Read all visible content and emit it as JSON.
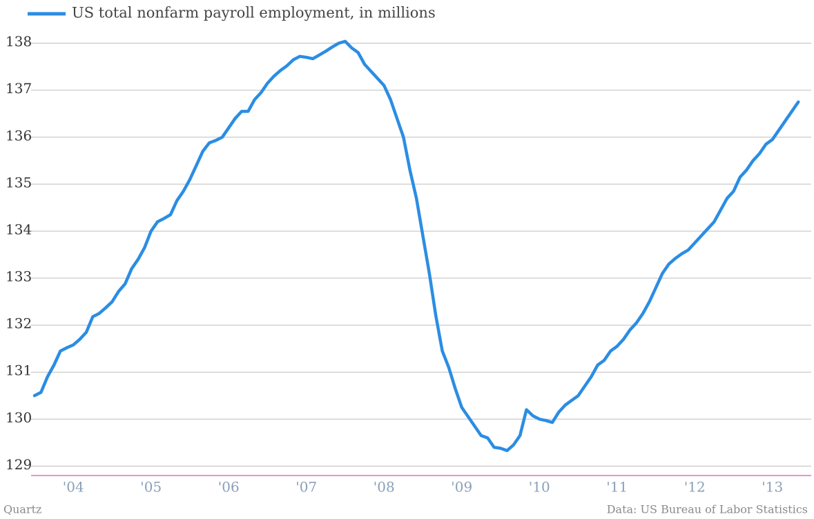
{
  "chart_data": {
    "type": "line",
    "credit": "Quartz",
    "source": "Data: US Bureau of Labor Statistics",
    "categories": [
      null,
      null,
      null,
      null,
      null,
      null,
      "'04",
      null,
      null,
      null,
      null,
      null,
      null,
      null,
      null,
      null,
      null,
      null,
      "'05",
      null,
      null,
      null,
      null,
      null,
      null,
      null,
      null,
      null,
      null,
      null,
      "'06",
      null,
      null,
      null,
      null,
      null,
      null,
      null,
      null,
      null,
      null,
      null,
      "'07",
      null,
      null,
      null,
      null,
      null,
      null,
      null,
      null,
      null,
      null,
      null,
      "'08",
      null,
      null,
      null,
      null,
      null,
      null,
      null,
      null,
      null,
      null,
      null,
      "'09",
      null,
      null,
      null,
      null,
      null,
      null,
      null,
      null,
      null,
      null,
      null,
      "'10",
      null,
      null,
      null,
      null,
      null,
      null,
      null,
      null,
      null,
      null,
      null,
      "'11",
      null,
      null,
      null,
      null,
      null,
      null,
      null,
      null,
      null,
      null,
      null,
      "'12",
      null,
      null,
      null,
      null,
      null,
      null,
      null,
      null,
      null,
      null,
      null,
      "'13",
      null,
      null,
      null,
      null
    ],
    "series": [
      {
        "name": "US total nonfarm payroll employment, in millions",
        "color": "#2b8de3",
        "values": [
          130.5,
          130.57,
          130.9,
          131.15,
          131.45,
          131.52,
          131.58,
          131.7,
          131.85,
          132.18,
          132.25,
          132.37,
          132.5,
          132.72,
          132.88,
          133.2,
          133.4,
          133.65,
          134.0,
          134.2,
          134.27,
          134.35,
          134.65,
          134.85,
          135.1,
          135.4,
          135.7,
          135.88,
          135.93,
          136.0,
          136.2,
          136.4,
          136.55,
          136.55,
          136.8,
          136.95,
          137.15,
          137.3,
          137.42,
          137.52,
          137.65,
          137.72,
          137.7,
          137.67,
          137.75,
          137.83,
          137.92,
          138.0,
          138.04,
          137.9,
          137.8,
          137.55,
          137.4,
          137.25,
          137.1,
          136.8,
          136.4,
          136.0,
          135.3,
          134.7,
          133.9,
          133.1,
          132.2,
          131.45,
          131.1,
          130.65,
          130.25,
          130.05,
          129.85,
          129.65,
          129.6,
          129.4,
          129.38,
          129.33,
          129.45,
          129.65,
          130.2,
          130.07,
          130.0,
          129.97,
          129.93,
          130.15,
          130.3,
          130.4,
          130.5,
          130.7,
          130.9,
          131.15,
          131.25,
          131.45,
          131.55,
          131.7,
          131.9,
          132.05,
          132.25,
          132.5,
          132.8,
          133.1,
          133.3,
          133.42,
          133.52,
          133.6,
          133.75,
          133.9,
          134.05,
          134.2,
          134.45,
          134.7,
          134.85,
          135.15,
          135.3,
          135.5,
          135.65,
          135.85,
          135.95,
          136.15,
          136.35,
          136.55,
          136.75
        ]
      }
    ],
    "ylim": [
      128.8,
      138.2
    ],
    "yticks": [
      129,
      130,
      131,
      132,
      133,
      134,
      135,
      136,
      137,
      138
    ],
    "grid": true
  }
}
